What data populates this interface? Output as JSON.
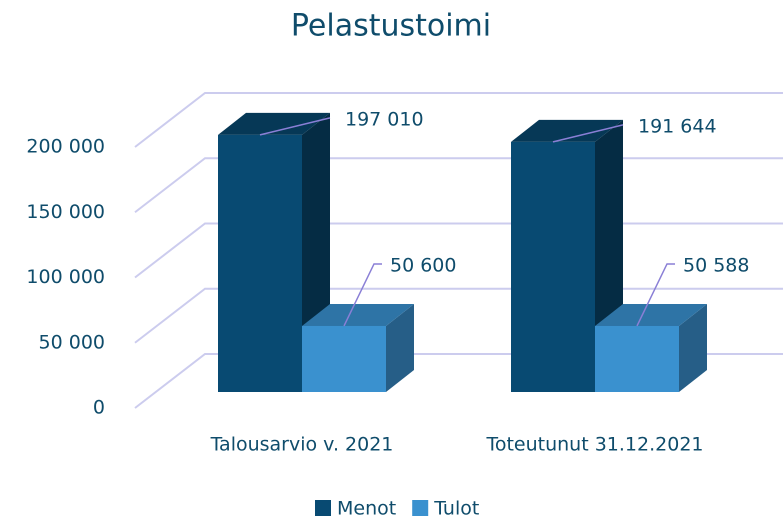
{
  "chart_data": {
    "type": "bar3d",
    "title": "Pelastustoimi",
    "categories": [
      "Talousarvio v. 2021",
      "Toteutunut 31.12.2021"
    ],
    "series": [
      {
        "name": "Menot",
        "color": "#084a72",
        "values": [
          197010,
          191644
        ],
        "value_labels": [
          "197 010",
          "191 644"
        ]
      },
      {
        "name": "Tulot",
        "color": "#3a91cf",
        "values": [
          50600,
          50588
        ],
        "value_labels": [
          "50 600",
          "50 588"
        ]
      }
    ],
    "ylim": [
      0,
      200000
    ],
    "yticks": [
      0,
      {
        "value": 50000,
        "label": "50 000"
      },
      {
        "value": 100000,
        "label": "100 000"
      },
      {
        "value": 150000,
        "label": "150 000"
      },
      {
        "value": 200000,
        "label": "200 000"
      }
    ],
    "grid": true,
    "legend": "bottom"
  }
}
